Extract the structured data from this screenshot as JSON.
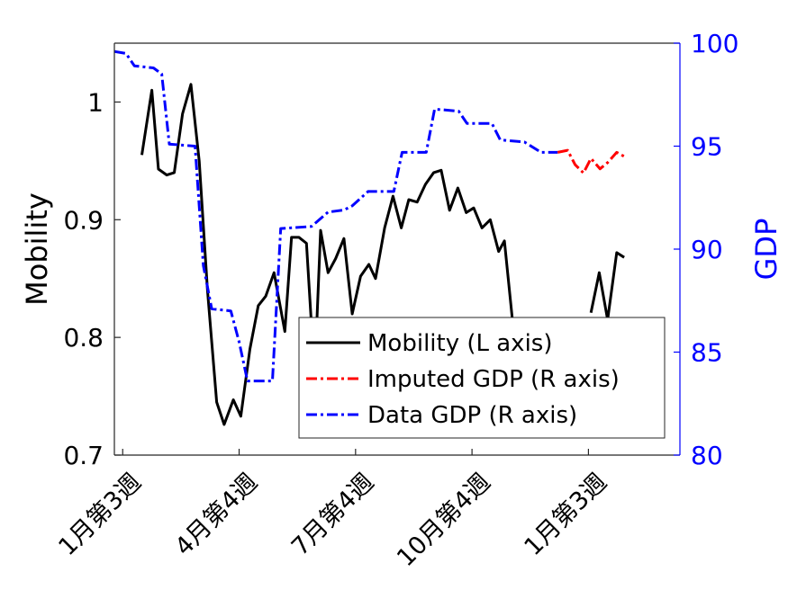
{
  "chart_data": {
    "type": "line",
    "ylabel_left": "Mobility",
    "ylabel_right": "GDP",
    "ylim_left": [
      0.7,
      1.05
    ],
    "ylim_right": [
      80,
      100
    ],
    "yticks_left": [
      0.7,
      0.8,
      0.9,
      1.0
    ],
    "yticks_left_labels": [
      "0.7",
      "0.8",
      "0.9",
      "1"
    ],
    "yticks_right": [
      80,
      85,
      90,
      95,
      100
    ],
    "yticks_right_labels": [
      "80",
      "85",
      "90",
      "95",
      "100"
    ],
    "x_range": [
      0,
      68
    ],
    "xticks": [
      {
        "x": 1,
        "label": "1月第3週"
      },
      {
        "x": 15,
        "label": "4月第4週"
      },
      {
        "x": 29,
        "label": "7月第4週"
      },
      {
        "x": 43,
        "label": "10月第4週"
      },
      {
        "x": 57,
        "label": "1月第3週"
      }
    ],
    "grid": false,
    "legend_placement": "lower-right",
    "series": [
      {
        "name": "Mobility (L axis)",
        "axis": "left",
        "color": "#000000",
        "style": "solid",
        "points": [
          [
            3.3,
            0.955
          ],
          [
            4.5,
            1.01
          ],
          [
            5.3,
            0.943
          ],
          [
            6.3,
            0.938
          ],
          [
            7.2,
            0.94
          ],
          [
            8.2,
            0.99
          ],
          [
            9.2,
            1.015
          ],
          [
            10.2,
            0.95
          ],
          [
            11.2,
            0.84
          ],
          [
            12.3,
            0.745
          ],
          [
            13.2,
            0.726
          ],
          [
            14.3,
            0.747
          ],
          [
            15.2,
            0.733
          ],
          [
            16.3,
            0.79
          ],
          [
            17.3,
            0.827
          ],
          [
            18.2,
            0.835
          ],
          [
            19.2,
            0.855
          ],
          [
            20.5,
            0.805
          ],
          [
            21.3,
            0.885
          ],
          [
            22.2,
            0.885
          ],
          [
            23.1,
            0.88
          ],
          [
            23.7,
            0.81
          ],
          [
            24.3,
            0.805
          ],
          [
            24.8,
            0.891
          ],
          [
            25.7,
            0.855
          ],
          [
            26.6,
            0.867
          ],
          [
            27.6,
            0.884
          ],
          [
            28.6,
            0.82
          ],
          [
            29.6,
            0.852
          ],
          [
            30.6,
            0.862
          ],
          [
            31.4,
            0.85
          ],
          [
            32.5,
            0.893
          ],
          [
            33.5,
            0.92
          ],
          [
            34.5,
            0.893
          ],
          [
            35.4,
            0.917
          ],
          [
            36.4,
            0.915
          ],
          [
            37.4,
            0.93
          ],
          [
            38.4,
            0.94
          ],
          [
            39.3,
            0.942
          ],
          [
            40.3,
            0.908
          ],
          [
            41.3,
            0.927
          ],
          [
            42.3,
            0.906
          ],
          [
            43.2,
            0.91
          ],
          [
            44.2,
            0.893
          ],
          [
            45.2,
            0.9
          ],
          [
            46.2,
            0.873
          ],
          [
            46.9,
            0.882
          ],
          [
            48.0,
            0.805
          ]
        ]
      },
      {
        "name": "Data GDP (R axis)",
        "axis": "right",
        "color": "#0000ff",
        "style": "dashdot",
        "points": [
          [
            0,
            99.6
          ],
          [
            1.4,
            99.5
          ],
          [
            2.4,
            98.9
          ],
          [
            4.7,
            98.8
          ],
          [
            5.7,
            98.5
          ],
          [
            6.6,
            95.1
          ],
          [
            9.7,
            95.0
          ],
          [
            10.7,
            89.2
          ],
          [
            11.7,
            87.1
          ],
          [
            14.0,
            87.0
          ],
          [
            15.0,
            85.5
          ],
          [
            16.0,
            83.6
          ],
          [
            19.0,
            83.6
          ],
          [
            20.0,
            91.0
          ],
          [
            23.7,
            91.1
          ],
          [
            25.7,
            91.8
          ],
          [
            27.6,
            91.9
          ],
          [
            28.6,
            92.1
          ],
          [
            30.5,
            92.8
          ],
          [
            33.6,
            92.8
          ],
          [
            34.6,
            94.7
          ],
          [
            37.5,
            94.7
          ],
          [
            38.5,
            96.8
          ],
          [
            41.4,
            96.7
          ],
          [
            42.4,
            96.1
          ],
          [
            45.4,
            96.1
          ],
          [
            46.4,
            95.3
          ],
          [
            49.3,
            95.2
          ],
          [
            51.3,
            94.7
          ],
          [
            53.3,
            94.7
          ]
        ]
      },
      {
        "name": "Imputed GDP (R axis)",
        "axis": "right",
        "color": "#ff0000",
        "style": "dashdot",
        "points": [
          [
            53.3,
            94.7
          ],
          [
            54.5,
            94.8
          ],
          [
            55.4,
            94.1
          ],
          [
            56.4,
            93.7
          ],
          [
            57.3,
            94.4
          ],
          [
            58.4,
            93.9
          ],
          [
            59.3,
            94.2
          ],
          [
            60.4,
            94.7
          ],
          [
            61.3,
            94.5
          ]
        ]
      },
      {
        "name": "Mobility (L axis)",
        "axis": "left",
        "color": "#000000",
        "style": "solid",
        "points": [
          [
            57.3,
            0.821
          ],
          [
            58.3,
            0.855
          ],
          [
            59.3,
            0.815
          ],
          [
            60.4,
            0.872
          ],
          [
            61.3,
            0.868
          ]
        ]
      }
    ],
    "legend": [
      {
        "label": "Mobility (L axis)",
        "color": "#000000",
        "style": "solid"
      },
      {
        "label": "Imputed GDP (R axis)",
        "color": "#ff0000",
        "style": "dashdot"
      },
      {
        "label": "Data GDP (R axis)",
        "color": "#0000ff",
        "style": "dashdot"
      }
    ]
  }
}
